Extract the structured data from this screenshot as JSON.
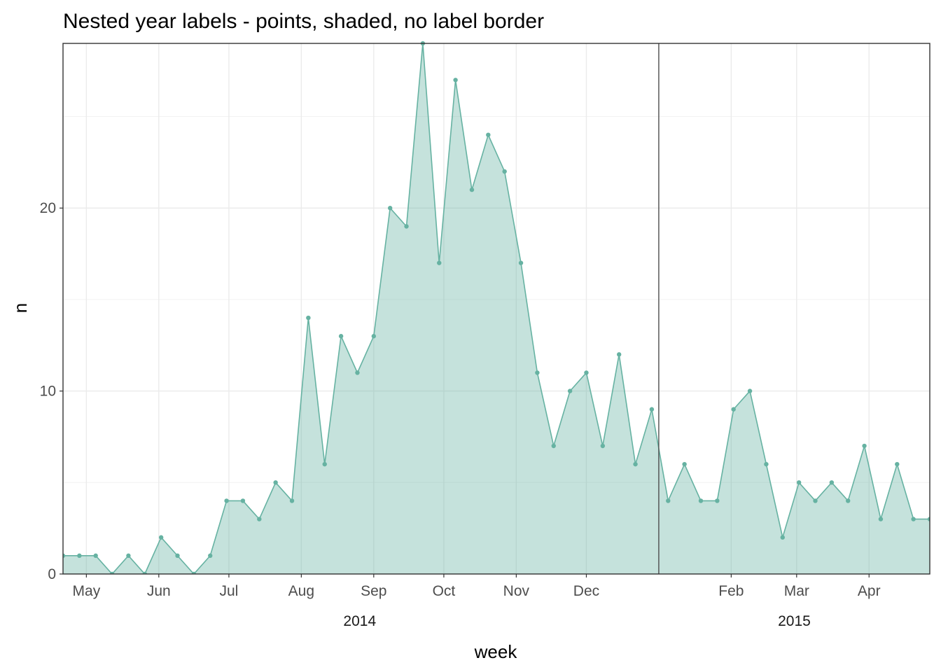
{
  "chart_data": {
    "type": "area",
    "title": "Nested year labels - points, shaded, no label border",
    "xlabel": "week",
    "ylabel": "n",
    "x_axis_type": "date",
    "xlim": [
      "2014-04-21",
      "2015-04-27"
    ],
    "ylim": [
      0,
      29
    ],
    "y_ticks": [
      0,
      10,
      20
    ],
    "grid": true,
    "legend": "none",
    "line_color": "#66b2a2",
    "fill_color": "#66b2a2",
    "fill_opacity": 0.38,
    "month_ticks": [
      {
        "date": "2014-05-01",
        "label": "May"
      },
      {
        "date": "2014-06-01",
        "label": "Jun"
      },
      {
        "date": "2014-07-01",
        "label": "Jul"
      },
      {
        "date": "2014-08-01",
        "label": "Aug"
      },
      {
        "date": "2014-09-01",
        "label": "Sep"
      },
      {
        "date": "2014-10-01",
        "label": "Oct"
      },
      {
        "date": "2014-11-01",
        "label": "Nov"
      },
      {
        "date": "2014-12-01",
        "label": "Dec"
      },
      {
        "date": "2015-02-01",
        "label": "Feb"
      },
      {
        "date": "2015-03-01",
        "label": "Mar"
      },
      {
        "date": "2015-04-01",
        "label": "Apr"
      }
    ],
    "year_groups": [
      {
        "label": "2014",
        "start": "2014-04-21",
        "end": "2014-12-31"
      },
      {
        "label": "2015",
        "start": "2015-01-01",
        "end": "2015-04-27"
      }
    ],
    "year_divider": "2015-01-01",
    "x": [
      "2014-04-21",
      "2014-04-28",
      "2014-05-05",
      "2014-05-12",
      "2014-05-19",
      "2014-05-26",
      "2014-06-02",
      "2014-06-09",
      "2014-06-16",
      "2014-06-23",
      "2014-06-30",
      "2014-07-07",
      "2014-07-14",
      "2014-07-21",
      "2014-07-28",
      "2014-08-04",
      "2014-08-11",
      "2014-08-18",
      "2014-08-25",
      "2014-09-01",
      "2014-09-08",
      "2014-09-15",
      "2014-09-22",
      "2014-09-29",
      "2014-10-06",
      "2014-10-13",
      "2014-10-20",
      "2014-10-27",
      "2014-11-03",
      "2014-11-10",
      "2014-11-17",
      "2014-11-24",
      "2014-12-01",
      "2014-12-08",
      "2014-12-15",
      "2014-12-22",
      "2014-12-29",
      "2015-01-05",
      "2015-01-12",
      "2015-01-19",
      "2015-01-26",
      "2015-02-02",
      "2015-02-09",
      "2015-02-16",
      "2015-02-23",
      "2015-03-02",
      "2015-03-09",
      "2015-03-16",
      "2015-03-23",
      "2015-03-30",
      "2015-04-06",
      "2015-04-13",
      "2015-04-20",
      "2015-04-27"
    ],
    "series": [
      {
        "values": [
          1,
          1,
          1,
          0,
          1,
          0,
          2,
          1,
          0,
          1,
          4,
          4,
          3,
          5,
          4,
          14,
          6,
          13,
          11,
          13,
          20,
          19,
          29,
          17,
          27,
          21,
          24,
          22,
          17,
          11,
          7,
          10,
          11,
          7,
          12,
          6,
          9,
          4,
          6,
          4,
          4,
          9,
          10,
          6,
          2,
          5,
          4,
          5,
          4,
          7,
          3,
          6,
          3,
          3
        ]
      }
    ]
  }
}
